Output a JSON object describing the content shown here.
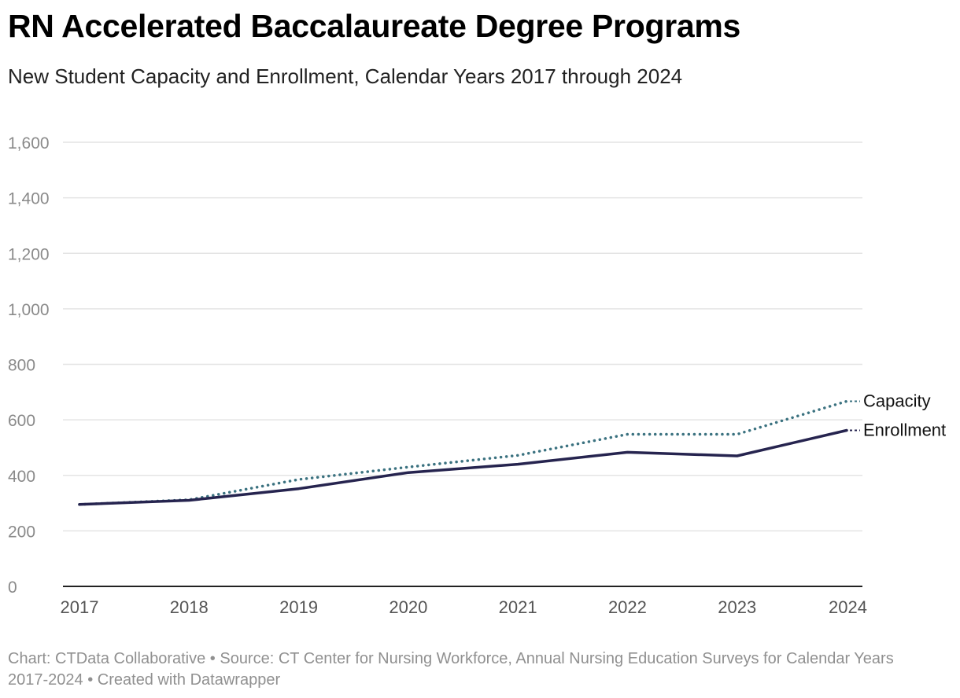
{
  "title": "RN Accelerated Baccalaureate Degree Programs",
  "subtitle": "New Student Capacity and Enrollment, Calendar Years 2017 through 2024",
  "footer": {
    "prefix": "Chart: ",
    "chart_by": "CTData Collaborative",
    "sep1": " • Source: ",
    "source": "CT Center for Nursing Workforce, Annual Nursing Education Surveys for Calendar Years 2017-2024",
    "sep2": " • ",
    "created": "Created with Datawrapper"
  },
  "colors": {
    "capacity": "#3b7280",
    "enrollment": "#26244f",
    "grid": "#e4e4e4",
    "axis": "#222222"
  },
  "chart_data": {
    "type": "line",
    "x": [
      "2017",
      "2018",
      "2019",
      "2020",
      "2021",
      "2022",
      "2023",
      "2024"
    ],
    "yticks": [
      "0",
      "200",
      "400",
      "600",
      "800",
      "1,000",
      "1,200",
      "1,400",
      "1,600"
    ],
    "ylim": [
      0,
      1600
    ],
    "grid": true,
    "legend": "inline-right",
    "series": [
      {
        "name": "Capacity",
        "style": "dotted",
        "color": "#3b7280",
        "values": [
          295,
          312,
          385,
          430,
          472,
          548,
          548,
          667
        ]
      },
      {
        "name": "Enrollment",
        "style": "solid",
        "color": "#26244f",
        "values": [
          295,
          310,
          352,
          410,
          440,
          483,
          470,
          562
        ]
      }
    ]
  }
}
